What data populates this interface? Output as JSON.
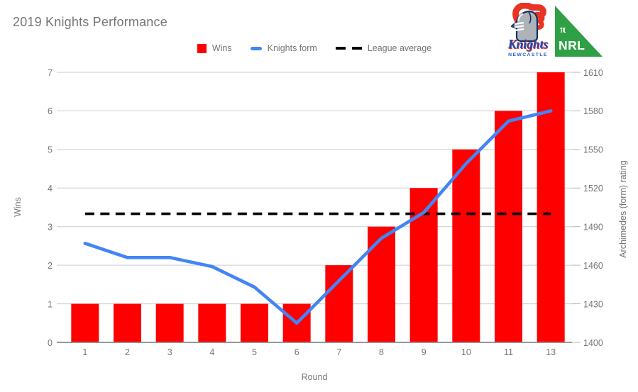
{
  "title": "2019 Knights Performance",
  "legend": {
    "items": [
      {
        "id": "wins",
        "label": "Wins",
        "swatch": "square",
        "color": "#ff0000"
      },
      {
        "id": "knights-form",
        "label": "Knights form",
        "swatch": "line",
        "color": "#4285f4"
      },
      {
        "id": "league-average",
        "label": "League average",
        "swatch": "dash",
        "color": "#000000"
      }
    ]
  },
  "logos": {
    "knights": {
      "name": "Knights",
      "subtext": "NEWCASTLE"
    },
    "nrl": {
      "pi": "π",
      "text": "NRL",
      "color": "#2fa045"
    }
  },
  "chart_data": {
    "type": "bar",
    "title": "2019 Knights Performance",
    "categories": [
      "1",
      "2",
      "3",
      "4",
      "5",
      "6",
      "7",
      "8",
      "9",
      "10",
      "11",
      "13"
    ],
    "series": [
      {
        "name": "Wins",
        "type": "bar",
        "axis": "left",
        "color": "#ff0000",
        "values": [
          1,
          1,
          1,
          1,
          1,
          1,
          2,
          3,
          4,
          5,
          6,
          7
        ]
      },
      {
        "name": "Knights form",
        "type": "line",
        "axis": "right",
        "color": "#4285f4",
        "values": [
          1477,
          1466,
          1466,
          1459,
          1443,
          1415,
          1448,
          1481,
          1501,
          1539,
          1572,
          1580
        ]
      },
      {
        "name": "League average",
        "type": "dashed-line",
        "axis": "right",
        "color": "#000000",
        "value": 1500
      }
    ],
    "xlabel": "Round",
    "ylabel_left": "Wins",
    "ylabel_right": "Archimedes (form) rating",
    "ylim_left": [
      0,
      7
    ],
    "yticks_left": [
      0,
      1,
      2,
      3,
      4,
      5,
      6,
      7
    ],
    "ylim_right": [
      1400,
      1610
    ],
    "yticks_right": [
      1400,
      1430,
      1460,
      1490,
      1520,
      1550,
      1580,
      1610
    ],
    "grid": true,
    "legend_position": "top",
    "text_color": "#757575",
    "grid_color": "#cccccc"
  }
}
